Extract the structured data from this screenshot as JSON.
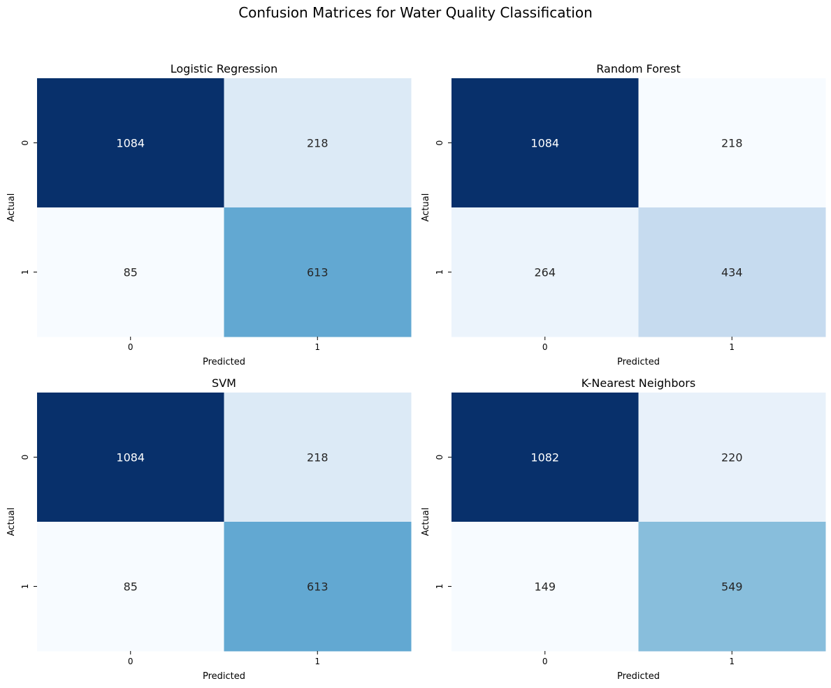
{
  "figure": {
    "title": "Confusion Matrices for Water Quality Classification"
  },
  "chart_data": [
    {
      "type": "heatmap",
      "title": "Logistic Regression",
      "xlabel": "Predicted",
      "ylabel": "Actual",
      "x_tick_labels": [
        "0",
        "1"
      ],
      "y_tick_labels": [
        "0",
        "1"
      ],
      "colormap": "Blues",
      "colorbar": false,
      "values": [
        [
          1084,
          218
        ],
        [
          85,
          613
        ]
      ]
    },
    {
      "type": "heatmap",
      "title": "Random Forest",
      "xlabel": "Predicted",
      "ylabel": "Actual",
      "x_tick_labels": [
        "0",
        "1"
      ],
      "y_tick_labels": [
        "0",
        "1"
      ],
      "colormap": "Blues",
      "colorbar": false,
      "values": [
        [
          1084,
          218
        ],
        [
          264,
          434
        ]
      ]
    },
    {
      "type": "heatmap",
      "title": "SVM",
      "xlabel": "Predicted",
      "ylabel": "Actual",
      "x_tick_labels": [
        "0",
        "1"
      ],
      "y_tick_labels": [
        "0",
        "1"
      ],
      "colormap": "Blues",
      "colorbar": false,
      "values": [
        [
          1084,
          218
        ],
        [
          85,
          613
        ]
      ]
    },
    {
      "type": "heatmap",
      "title": "K-Nearest Neighbors",
      "xlabel": "Predicted",
      "ylabel": "Actual",
      "x_tick_labels": [
        "0",
        "1"
      ],
      "y_tick_labels": [
        "0",
        "1"
      ],
      "colormap": "Blues",
      "colorbar": false,
      "values": [
        [
          1082,
          220
        ],
        [
          149,
          549
        ]
      ]
    }
  ]
}
